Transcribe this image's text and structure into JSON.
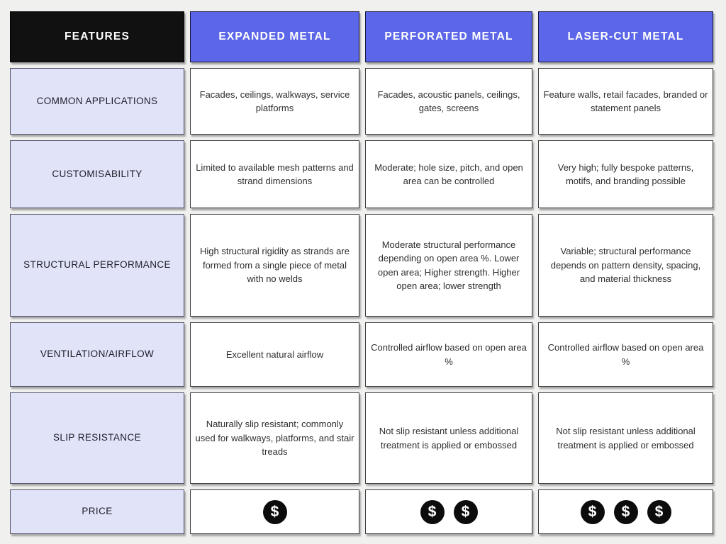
{
  "table": {
    "header": {
      "features_label": "FEATURES",
      "columns": [
        {
          "label": "EXPANDED METAL"
        },
        {
          "label": "PERFORATED METAL"
        },
        {
          "label": "LASER-CUT METAL"
        }
      ],
      "colors": {
        "features_bg": "#111111",
        "column_bg": "#5c66e8",
        "header_text": "#ffffff",
        "feature_cell_bg": "#e1e3f9",
        "page_bg": "#f0f0ef"
      }
    },
    "rows": [
      {
        "feature": "COMMON APPLICATIONS",
        "cells": [
          "Facades, ceilings, walkways, service platforms",
          "Facades, acoustic panels, ceilings, gates, screens",
          "Feature walls, retail facades, branded or statement panels"
        ]
      },
      {
        "feature": "CUSTOMISABILITY",
        "cells": [
          "Limited to available mesh patterns and strand dimensions",
          "Moderate; hole size, pitch, and open area can be controlled",
          "Very high; fully bespoke patterns, motifs, and branding possible"
        ]
      },
      {
        "feature": "STRUCTURAL PERFORMANCE",
        "cells": [
          "High structural rigidity as strands are formed from a single piece of metal with no welds",
          "Moderate structural performance depending on open area %. Lower open area; Higher strength. Higher open area; lower strength",
          "Variable; structural performance depends on pattern density, spacing, and material thickness"
        ]
      },
      {
        "feature": "VENTILATION/AIRFLOW",
        "cells": [
          "Excellent natural airflow",
          "Controlled airflow based on open area %",
          "Controlled airflow based on open area %"
        ]
      },
      {
        "feature": "SLIP RESISTANCE",
        "cells": [
          "Naturally slip resistant; commonly used for walkways, platforms, and stair treads",
          "Not slip resistant unless additional treatment is applied or embossed",
          "Not slip resistant unless additional treatment is applied or embossed"
        ]
      }
    ],
    "price_row": {
      "feature": "PRICE",
      "dollar_symbol": "$",
      "dollar_counts": [
        1,
        2,
        3
      ]
    }
  }
}
